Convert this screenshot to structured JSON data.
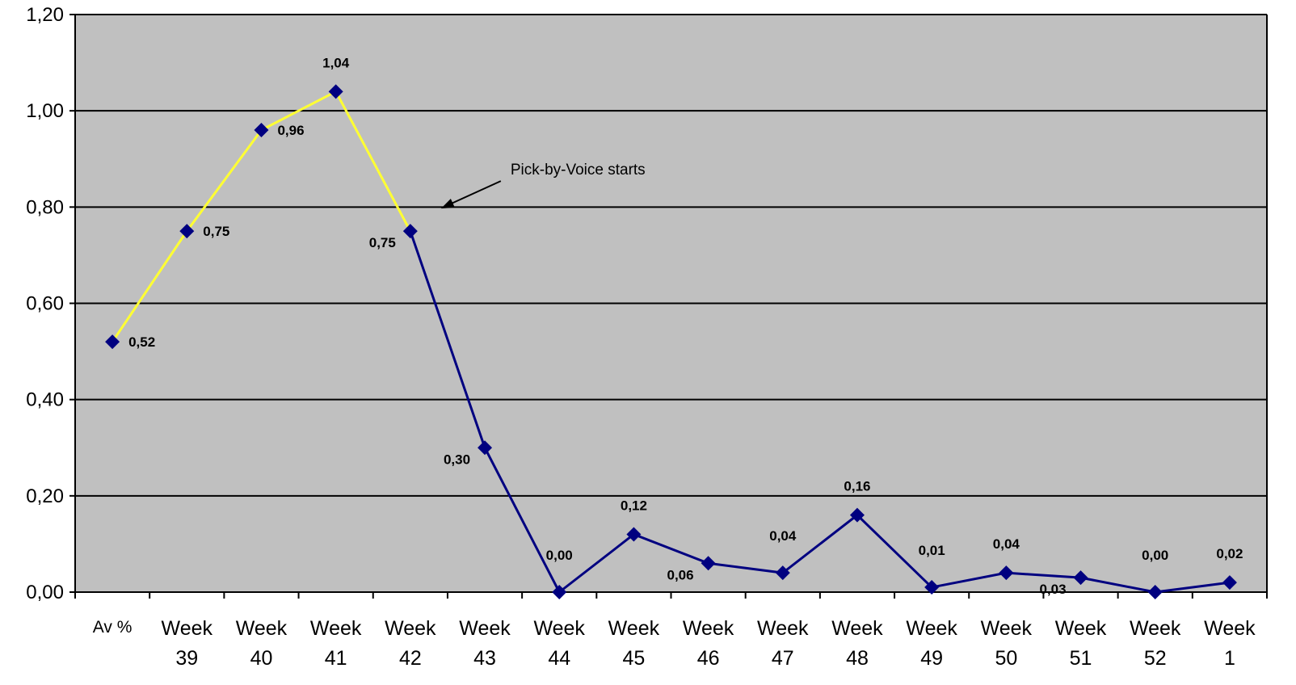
{
  "chart_data": {
    "type": "line",
    "title": "",
    "xlabel": "",
    "ylabel": "",
    "ylim": [
      0,
      1.2
    ],
    "y_ticks": [
      "0,00",
      "0,20",
      "0,40",
      "0,60",
      "0,80",
      "1,00",
      "1,20"
    ],
    "grid": "horizontal",
    "background_color": "#c0c0c0",
    "categories": [
      [
        "Av %"
      ],
      [
        "Week",
        "39"
      ],
      [
        "Week",
        "40"
      ],
      [
        "Week",
        "41"
      ],
      [
        "Week",
        "42"
      ],
      [
        "Week",
        "43"
      ],
      [
        "Week",
        "44"
      ],
      [
        "Week",
        "45"
      ],
      [
        "Week",
        "46"
      ],
      [
        "Week",
        "47"
      ],
      [
        "Week",
        "48"
      ],
      [
        "Week",
        "49"
      ],
      [
        "Week",
        "50"
      ],
      [
        "Week",
        "51"
      ],
      [
        "Week",
        "52"
      ],
      [
        "Week",
        "1"
      ]
    ],
    "values": [
      0.52,
      0.75,
      0.96,
      1.04,
      0.75,
      0.3,
      0.0,
      0.12,
      0.06,
      0.04,
      0.16,
      0.01,
      0.04,
      0.03,
      0.0,
      0.02
    ],
    "data_labels": [
      "0,52",
      "0,75",
      "0,96",
      "1,04",
      "0,75",
      "0,30",
      "0,00",
      "0,12",
      "0,06",
      "0,04",
      "0,16",
      "0,01",
      "0,04",
      "0,03",
      "0,00",
      "0,02"
    ],
    "segments": [
      {
        "from_index": 0,
        "to_index": 4,
        "color": "#ffff33"
      },
      {
        "from_index": 4,
        "to_index": 15,
        "color": "#000080"
      }
    ],
    "marker_color": "#000080",
    "annotation": {
      "text": "Pick-by-Voice starts",
      "at_index": 4
    }
  }
}
